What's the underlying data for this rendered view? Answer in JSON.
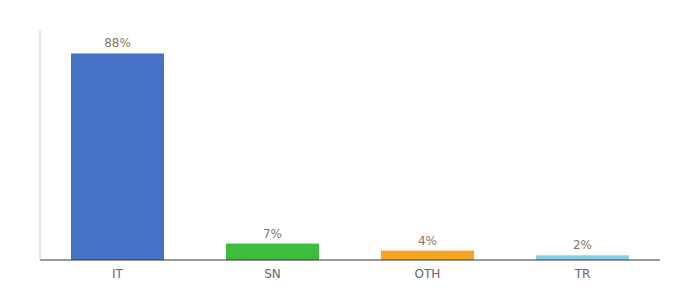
{
  "chart_data": {
    "type": "bar",
    "categories": [
      "IT",
      "SN",
      "OTH",
      "TR"
    ],
    "values": [
      88,
      7,
      4,
      2
    ],
    "value_labels": [
      "88%",
      "7%",
      "4%",
      "2%"
    ],
    "colors": [
      "#4472C4",
      "#3DBD3D",
      "#F5A623",
      "#87CEEB"
    ],
    "ylim": [
      0,
      98
    ],
    "data_labels": true,
    "tick_labels": "x",
    "grid": false
  }
}
